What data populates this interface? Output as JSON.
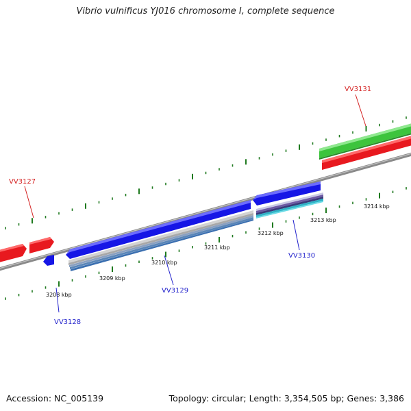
{
  "title": "Vibrio vulnificus YJ016 chromosome I, complete sequence",
  "accession_text": "Accession: NC_005139",
  "summary_text": "Topology: circular; Length: 3,354,505 bp; Genes: 3,386",
  "colors": {
    "backbone": "#8a8a8a",
    "forward_gene": "#e8191f",
    "reverse_gene": "#1616e6",
    "rna_feature": "#3dc43d",
    "ticks": "#1f7a1f",
    "label_forward": "#d42020",
    "label_reverse": "#2222cc"
  },
  "scale_labels": [
    "3208 kbp",
    "3209 kbp",
    "3210 kbp",
    "3211 kbp",
    "3212 kbp",
    "3213 kbp",
    "3214 kbp"
  ],
  "gene_labels": [
    {
      "name": "VV3127",
      "strand": "forward"
    },
    {
      "name": "VV3128",
      "strand": "reverse"
    },
    {
      "name": "VV3129",
      "strand": "reverse"
    },
    {
      "name": "VV3130",
      "strand": "reverse"
    },
    {
      "name": "VV3131",
      "strand": "forward"
    }
  ]
}
